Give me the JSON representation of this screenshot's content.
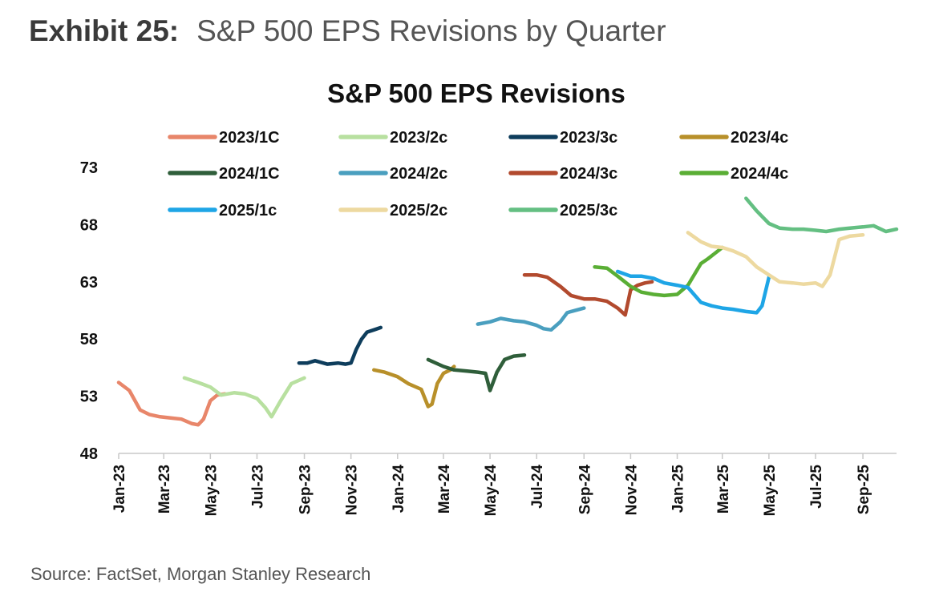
{
  "exhibit": {
    "label": "Exhibit 25:",
    "title": "S&P 500 EPS Revisions by Quarter"
  },
  "source": "Source: FactSet, Morgan Stanley Research",
  "chart_data": {
    "type": "line",
    "title": "S&P 500 EPS Revisions",
    "xlabel": "",
    "ylabel": "",
    "ylim": [
      48,
      73
    ],
    "yticks": [
      48,
      53,
      58,
      63,
      68,
      73
    ],
    "xlim": [
      "2023-01-01",
      "2025-10-15"
    ],
    "xticks": [
      "2023-01-01",
      "2023-03-01",
      "2023-05-01",
      "2023-07-01",
      "2023-09-01",
      "2023-11-01",
      "2024-01-01",
      "2024-03-01",
      "2024-05-01",
      "2024-07-01",
      "2024-09-01",
      "2024-11-01",
      "2025-01-01",
      "2025-03-01",
      "2025-05-01",
      "2025-07-01",
      "2025-09-01"
    ],
    "xtick_labels": [
      "Jan-23",
      "Mar-23",
      "May-23",
      "Jul-23",
      "Sep-23",
      "Nov-23",
      "Jan-24",
      "Mar-24",
      "May-24",
      "Jul-24",
      "Sep-24",
      "Nov-24",
      "Jan-25",
      "Mar-25",
      "May-25",
      "Jul-25",
      "Sep-25"
    ],
    "grid": false,
    "legend_position": "top",
    "series": [
      {
        "name": "2023/1C",
        "color": "#E8866A",
        "x": [
          "2023-01-01",
          "2023-01-15",
          "2023-01-29",
          "2023-02-10",
          "2023-02-24",
          "2023-03-10",
          "2023-03-24",
          "2023-04-07",
          "2023-04-15",
          "2023-04-22",
          "2023-05-01",
          "2023-05-10",
          "2023-05-20"
        ],
        "values": [
          54.2,
          53.5,
          51.8,
          51.4,
          51.2,
          51.1,
          51.0,
          50.6,
          50.5,
          51.0,
          52.6,
          53.1,
          53.2
        ]
      },
      {
        "name": "2023/2c",
        "color": "#B8E0A0",
        "x": [
          "2023-03-28",
          "2023-04-15",
          "2023-05-01",
          "2023-05-15",
          "2023-06-01",
          "2023-06-15",
          "2023-07-01",
          "2023-07-12",
          "2023-07-20",
          "2023-08-01",
          "2023-08-15",
          "2023-09-01"
        ],
        "values": [
          54.6,
          54.2,
          53.8,
          53.1,
          53.3,
          53.2,
          52.8,
          52.0,
          51.2,
          52.6,
          54.1,
          54.6
        ]
      },
      {
        "name": "2023/3c",
        "color": "#0E3D5C",
        "x": [
          "2023-08-25",
          "2023-09-05",
          "2023-09-15",
          "2023-10-01",
          "2023-10-15",
          "2023-10-25",
          "2023-11-01",
          "2023-11-08",
          "2023-11-15",
          "2023-11-22",
          "2023-12-01",
          "2023-12-10"
        ],
        "values": [
          55.9,
          55.9,
          56.1,
          55.8,
          55.9,
          55.8,
          55.9,
          57.1,
          58.0,
          58.6,
          58.8,
          59.0
        ]
      },
      {
        "name": "2023/4c",
        "color": "#B8902A",
        "x": [
          "2023-12-01",
          "2023-12-15",
          "2024-01-01",
          "2024-01-15",
          "2024-02-01",
          "2024-02-10",
          "2024-02-15",
          "2024-02-22",
          "2024-03-01",
          "2024-03-10",
          "2024-03-15"
        ],
        "values": [
          55.3,
          55.1,
          54.7,
          54.1,
          53.6,
          52.1,
          52.3,
          54.1,
          55.0,
          55.3,
          55.6
        ]
      },
      {
        "name": "2024/1C",
        "color": "#2F5E3A",
        "x": [
          "2024-02-10",
          "2024-03-01",
          "2024-03-15",
          "2024-04-01",
          "2024-04-15",
          "2024-04-25",
          "2024-05-01",
          "2024-05-10",
          "2024-05-20",
          "2024-06-01",
          "2024-06-15"
        ],
        "values": [
          56.2,
          55.6,
          55.3,
          55.2,
          55.1,
          55.0,
          53.5,
          55.1,
          56.2,
          56.5,
          56.6
        ]
      },
      {
        "name": "2024/2c",
        "color": "#4A9FBF",
        "x": [
          "2024-04-15",
          "2024-05-01",
          "2024-05-15",
          "2024-06-01",
          "2024-06-15",
          "2024-07-01",
          "2024-07-10",
          "2024-07-20",
          "2024-08-01",
          "2024-08-10",
          "2024-08-15",
          "2024-09-01"
        ],
        "values": [
          59.3,
          59.5,
          59.8,
          59.6,
          59.5,
          59.2,
          58.9,
          58.8,
          59.5,
          60.3,
          60.4,
          60.7
        ]
      },
      {
        "name": "2024/3c",
        "color": "#B24A2E",
        "x": [
          "2024-06-15",
          "2024-07-01",
          "2024-07-15",
          "2024-08-01",
          "2024-08-15",
          "2024-09-01",
          "2024-09-15",
          "2024-10-01",
          "2024-10-15",
          "2024-10-25",
          "2024-11-01",
          "2024-11-10",
          "2024-11-20",
          "2024-11-29"
        ],
        "values": [
          63.6,
          63.6,
          63.4,
          62.6,
          61.8,
          61.5,
          61.5,
          61.3,
          60.7,
          60.1,
          62.3,
          62.7,
          62.9,
          63.0
        ]
      },
      {
        "name": "2024/4c",
        "color": "#5AAE35",
        "x": [
          "2024-09-15",
          "2024-10-01",
          "2024-10-15",
          "2024-11-01",
          "2024-11-15",
          "2024-12-01",
          "2024-12-15",
          "2025-01-01",
          "2025-01-15",
          "2025-02-01",
          "2025-02-10",
          "2025-03-01"
        ],
        "values": [
          64.3,
          64.2,
          63.5,
          62.6,
          62.1,
          61.9,
          61.8,
          61.9,
          62.7,
          64.6,
          65.0,
          66.0
        ]
      },
      {
        "name": "2025/1c",
        "color": "#1EA5E6",
        "x": [
          "2024-10-15",
          "2024-11-01",
          "2024-11-15",
          "2024-12-01",
          "2024-12-15",
          "2025-01-01",
          "2025-01-15",
          "2025-02-01",
          "2025-02-15",
          "2025-03-01",
          "2025-03-15",
          "2025-04-01",
          "2025-04-15",
          "2025-04-22",
          "2025-05-01"
        ],
        "values": [
          63.9,
          63.5,
          63.5,
          63.3,
          62.9,
          62.7,
          62.5,
          61.2,
          60.9,
          60.7,
          60.6,
          60.4,
          60.3,
          60.9,
          63.4
        ]
      },
      {
        "name": "2025/2c",
        "color": "#EDD9A0",
        "x": [
          "2025-01-15",
          "2025-02-01",
          "2025-02-15",
          "2025-03-01",
          "2025-03-15",
          "2025-04-01",
          "2025-04-15",
          "2025-05-01",
          "2025-05-15",
          "2025-06-01",
          "2025-06-15",
          "2025-07-01",
          "2025-07-10",
          "2025-07-20",
          "2025-08-01",
          "2025-08-15",
          "2025-09-01"
        ],
        "values": [
          67.3,
          66.5,
          66.1,
          66.0,
          65.7,
          65.2,
          64.3,
          63.6,
          63.0,
          62.9,
          62.8,
          62.9,
          62.6,
          63.6,
          66.7,
          67.0,
          67.1
        ]
      },
      {
        "name": "2025/3c",
        "color": "#64BF82",
        "x": [
          "2025-04-01",
          "2025-04-15",
          "2025-05-01",
          "2025-05-15",
          "2025-06-01",
          "2025-06-15",
          "2025-07-01",
          "2025-07-15",
          "2025-08-01",
          "2025-08-15",
          "2025-09-01",
          "2025-09-15",
          "2025-10-01",
          "2025-10-15"
        ],
        "values": [
          70.3,
          69.2,
          68.1,
          67.7,
          67.6,
          67.6,
          67.5,
          67.4,
          67.6,
          67.7,
          67.8,
          67.9,
          67.4,
          67.6
        ]
      }
    ]
  }
}
